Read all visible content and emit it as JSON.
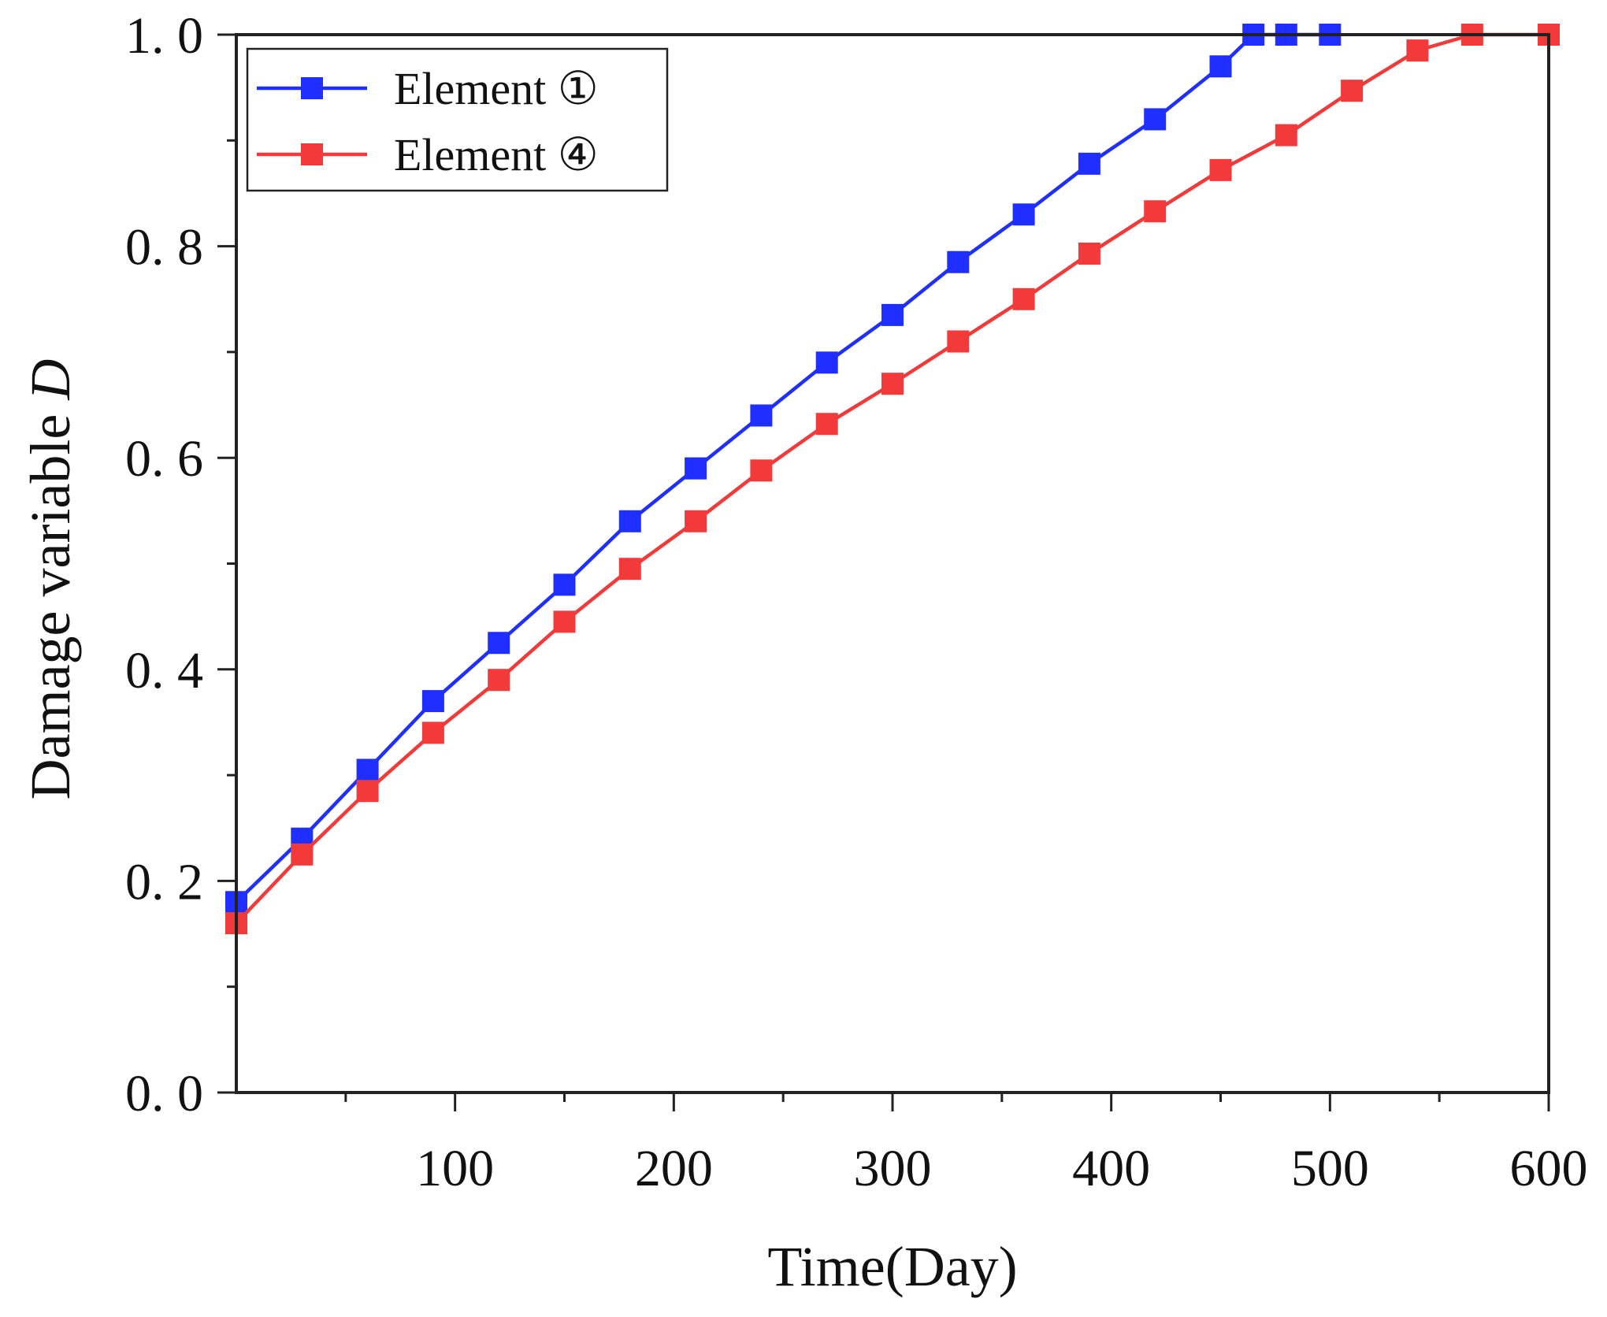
{
  "chart_data": {
    "type": "line",
    "title": "",
    "xlabel": "Time(Day)",
    "ylabel_prefix": "Damage variable ",
    "ylabel_symbol": "D",
    "xlim": [
      0,
      600
    ],
    "ylim": [
      0,
      1.0
    ],
    "x_ticks": [
      100,
      200,
      300,
      400,
      500,
      600
    ],
    "y_ticks": [
      0,
      0.2,
      0.4,
      0.6,
      0.8,
      1.0
    ],
    "x_tick_labels": [
      "100",
      "200",
      "300",
      "400",
      "500",
      "600"
    ],
    "y_tick_labels": [
      "0. 0",
      "0. 2",
      "0. 4",
      "0. 6",
      "0. 8",
      "1. 0"
    ],
    "grid": false,
    "legend_position": "top-left",
    "series": [
      {
        "name": "Element ①",
        "color": "#1f2fff",
        "marker": "square",
        "x": [
          0,
          30,
          60,
          90,
          120,
          150,
          180,
          210,
          240,
          270,
          300,
          330,
          360,
          390,
          420,
          450,
          465,
          480,
          500
        ],
        "y": [
          0.18,
          0.24,
          0.305,
          0.37,
          0.425,
          0.48,
          0.54,
          0.59,
          0.64,
          0.69,
          0.735,
          0.785,
          0.83,
          0.878,
          0.92,
          0.97,
          1.0,
          1.0,
          1.0
        ]
      },
      {
        "name": "Element ④",
        "color": "#f23a3a",
        "marker": "square",
        "x": [
          0,
          30,
          60,
          90,
          120,
          150,
          180,
          210,
          240,
          270,
          300,
          330,
          360,
          390,
          420,
          450,
          480,
          510,
          540,
          565,
          600
        ],
        "y": [
          0.16,
          0.225,
          0.285,
          0.34,
          0.39,
          0.445,
          0.495,
          0.54,
          0.588,
          0.632,
          0.67,
          0.71,
          0.75,
          0.793,
          0.833,
          0.872,
          0.905,
          0.947,
          0.985,
          1.0,
          1.0
        ]
      }
    ]
  }
}
